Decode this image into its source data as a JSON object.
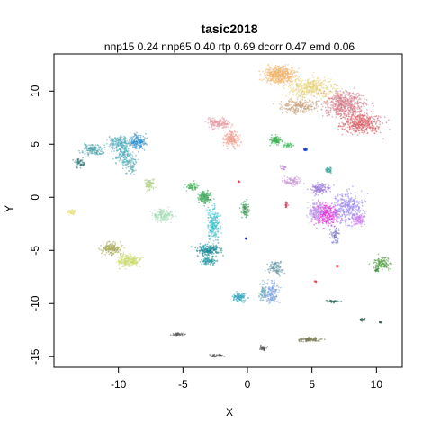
{
  "chart_data": {
    "type": "scatter",
    "title": "tasic2018",
    "subtitle": "nnp15 0.24 nnp65 0.40 rtp 0.69 dcorr 0.47 emd 0.06",
    "xlabel": "X",
    "ylabel": "Y",
    "xlim": [
      -15,
      12
    ],
    "ylim": [
      -16,
      13.5
    ],
    "xticks": [
      -10,
      -5,
      0,
      5,
      10
    ],
    "yticks": [
      -15,
      -10,
      -5,
      0,
      5,
      10
    ],
    "xtick_labels": [
      "-10",
      "-5",
      "0",
      "5",
      "10"
    ],
    "ytick_labels": [
      "-15",
      "-10",
      "-5",
      "0",
      "5",
      "10"
    ],
    "grid": false,
    "legend": "none",
    "clusters": [
      {
        "x": 2.5,
        "y": 11.5,
        "rx": 1.2,
        "ry": 0.8,
        "n": 420,
        "color": "#f0b36a"
      },
      {
        "x": 5.0,
        "y": 10.3,
        "rx": 1.8,
        "ry": 1.0,
        "n": 380,
        "color": "#e8d27a"
      },
      {
        "x": 7.5,
        "y": 8.8,
        "rx": 1.6,
        "ry": 1.2,
        "n": 500,
        "color": "#d37b8a"
      },
      {
        "x": 8.8,
        "y": 7.0,
        "rx": 1.5,
        "ry": 1.0,
        "n": 420,
        "color": "#d9626a"
      },
      {
        "x": 4.0,
        "y": 8.6,
        "rx": 1.5,
        "ry": 0.7,
        "n": 220,
        "color": "#c8a37c"
      },
      {
        "x": -2.2,
        "y": 7.0,
        "rx": 0.9,
        "ry": 0.5,
        "n": 160,
        "color": "#e59aa3"
      },
      {
        "x": -1.2,
        "y": 5.5,
        "rx": 0.6,
        "ry": 0.8,
        "n": 160,
        "color": "#ee9a8a"
      },
      {
        "x": -13.0,
        "y": 3.2,
        "rx": 0.4,
        "ry": 0.4,
        "n": 60,
        "color": "#3a7a7a"
      },
      {
        "x": -12.0,
        "y": 4.5,
        "rx": 0.8,
        "ry": 0.5,
        "n": 130,
        "color": "#4aa0a8"
      },
      {
        "x": -10.0,
        "y": 5.2,
        "rx": 0.8,
        "ry": 0.6,
        "n": 150,
        "color": "#5bb0c0"
      },
      {
        "x": -9.6,
        "y": 4.2,
        "rx": 0.7,
        "ry": 1.2,
        "n": 170,
        "color": "#46a9b8"
      },
      {
        "x": -8.5,
        "y": 5.2,
        "rx": 0.6,
        "ry": 0.7,
        "n": 160,
        "color": "#2f8fc8"
      },
      {
        "x": -9.0,
        "y": 3.0,
        "rx": 0.4,
        "ry": 0.9,
        "n": 80,
        "color": "#6ab0b8"
      },
      {
        "x": -7.6,
        "y": 1.2,
        "rx": 0.4,
        "ry": 0.5,
        "n": 60,
        "color": "#a8c878"
      },
      {
        "x": -6.5,
        "y": -1.7,
        "rx": 0.8,
        "ry": 0.6,
        "n": 170,
        "color": "#a8dcb8"
      },
      {
        "x": -13.6,
        "y": -1.4,
        "rx": 0.3,
        "ry": 0.25,
        "n": 40,
        "color": "#e8e070"
      },
      {
        "x": -10.5,
        "y": -4.8,
        "rx": 0.8,
        "ry": 0.6,
        "n": 170,
        "color": "#a8a858"
      },
      {
        "x": -9.2,
        "y": -6.0,
        "rx": 0.9,
        "ry": 0.6,
        "n": 190,
        "color": "#c8d868"
      },
      {
        "x": -3.3,
        "y": 0.0,
        "rx": 0.5,
        "ry": 0.6,
        "n": 140,
        "color": "#3aa858"
      },
      {
        "x": -4.3,
        "y": 1.0,
        "rx": 0.5,
        "ry": 0.4,
        "n": 70,
        "color": "#4ab060"
      },
      {
        "x": -2.6,
        "y": -2.5,
        "rx": 0.5,
        "ry": 1.7,
        "n": 200,
        "color": "#38c0c8"
      },
      {
        "x": -3.0,
        "y": -5.0,
        "rx": 0.9,
        "ry": 0.5,
        "n": 200,
        "color": "#1a8c98"
      },
      {
        "x": -3.0,
        "y": -6.0,
        "rx": 0.6,
        "ry": 0.3,
        "n": 90,
        "color": "#2a9ca8"
      },
      {
        "x": -0.6,
        "y": -9.4,
        "rx": 0.5,
        "ry": 0.4,
        "n": 110,
        "color": "#3aa8c0"
      },
      {
        "x": 1.9,
        "y": -9.0,
        "rx": 0.6,
        "ry": 1.0,
        "n": 150,
        "color": "#78a0e0"
      },
      {
        "x": 2.2,
        "y": -6.6,
        "rx": 0.6,
        "ry": 0.7,
        "n": 110,
        "color": "#6a9aa8"
      },
      {
        "x": 1.2,
        "y": -8.8,
        "rx": 0.25,
        "ry": 0.8,
        "n": 60,
        "color": "#68a8b8"
      },
      {
        "x": 5.6,
        "y": 0.8,
        "rx": 0.8,
        "ry": 0.5,
        "n": 130,
        "color": "#9a78d8"
      },
      {
        "x": 3.5,
        "y": 1.5,
        "rx": 0.7,
        "ry": 0.4,
        "n": 90,
        "color": "#c898d8"
      },
      {
        "x": 6.1,
        "y": -1.6,
        "rx": 1.0,
        "ry": 1.0,
        "n": 300,
        "color": "#e030d8"
      },
      {
        "x": 7.8,
        "y": -1.0,
        "rx": 1.2,
        "ry": 1.5,
        "n": 340,
        "color": "#9a88f0"
      },
      {
        "x": 5.3,
        "y": -1.3,
        "rx": 0.6,
        "ry": 0.9,
        "n": 130,
        "color": "#b8a8e8"
      },
      {
        "x": 6.8,
        "y": -3.6,
        "rx": 0.35,
        "ry": 0.8,
        "n": 70,
        "color": "#7878c8"
      },
      {
        "x": 8.6,
        "y": -2.1,
        "rx": 0.5,
        "ry": 0.5,
        "n": 80,
        "color": "#c878e8"
      },
      {
        "x": 2.2,
        "y": 5.4,
        "rx": 0.5,
        "ry": 0.4,
        "n": 100,
        "color": "#38b050"
      },
      {
        "x": 3.2,
        "y": 4.9,
        "rx": 0.4,
        "ry": 0.2,
        "n": 50,
        "color": "#50c068"
      },
      {
        "x": 4.5,
        "y": 4.5,
        "rx": 0.12,
        "ry": 0.12,
        "n": 20,
        "color": "#1a3ad8"
      },
      {
        "x": 6.3,
        "y": 2.6,
        "rx": 0.25,
        "ry": 0.3,
        "n": 35,
        "color": "#2a9a8a"
      },
      {
        "x": 2.8,
        "y": 2.8,
        "rx": 0.2,
        "ry": 0.2,
        "n": 20,
        "color": "#b078c8"
      },
      {
        "x": -0.2,
        "y": -1.2,
        "rx": 0.3,
        "ry": 0.8,
        "n": 80,
        "color": "#3a9a58"
      },
      {
        "x": 3.0,
        "y": -0.7,
        "rx": 0.12,
        "ry": 0.3,
        "n": 20,
        "color": "#d84058"
      },
      {
        "x": -0.7,
        "y": 1.5,
        "rx": 0.1,
        "ry": 0.1,
        "n": 10,
        "color": "#e83050"
      },
      {
        "x": -0.1,
        "y": -3.9,
        "rx": 0.1,
        "ry": 0.1,
        "n": 12,
        "color": "#2020c0"
      },
      {
        "x": 10.4,
        "y": -6.2,
        "rx": 0.7,
        "ry": 0.6,
        "n": 110,
        "color": "#4a9a38"
      },
      {
        "x": 7.0,
        "y": -6.5,
        "rx": 0.1,
        "ry": 0.1,
        "n": 10,
        "color": "#e83040"
      },
      {
        "x": 5.3,
        "y": -7.9,
        "rx": 0.1,
        "ry": 0.1,
        "n": 8,
        "color": "#e83040"
      },
      {
        "x": 6.6,
        "y": -9.8,
        "rx": 0.5,
        "ry": 0.12,
        "n": 40,
        "color": "#2a6a5a"
      },
      {
        "x": 8.9,
        "y": -11.5,
        "rx": 0.3,
        "ry": 0.15,
        "n": 25,
        "color": "#2a5a4a"
      },
      {
        "x": 10.3,
        "y": -11.8,
        "rx": 0.1,
        "ry": 0.1,
        "n": 8,
        "color": "#2a4a3a"
      },
      {
        "x": -5.3,
        "y": -12.9,
        "rx": 0.6,
        "ry": 0.12,
        "n": 40,
        "color": "#5a5a5a"
      },
      {
        "x": 4.8,
        "y": -13.4,
        "rx": 0.9,
        "ry": 0.2,
        "n": 100,
        "color": "#7a7a5a"
      },
      {
        "x": 1.2,
        "y": -14.2,
        "rx": 0.35,
        "ry": 0.25,
        "n": 30,
        "color": "#4a4a4a"
      },
      {
        "x": -2.3,
        "y": -14.9,
        "rx": 0.6,
        "ry": 0.12,
        "n": 40,
        "color": "#4a4a4a"
      },
      {
        "x": 10.0,
        "y": -6.8,
        "rx": 0.2,
        "ry": 0.2,
        "n": 20,
        "color": "#3a8a38"
      }
    ]
  }
}
